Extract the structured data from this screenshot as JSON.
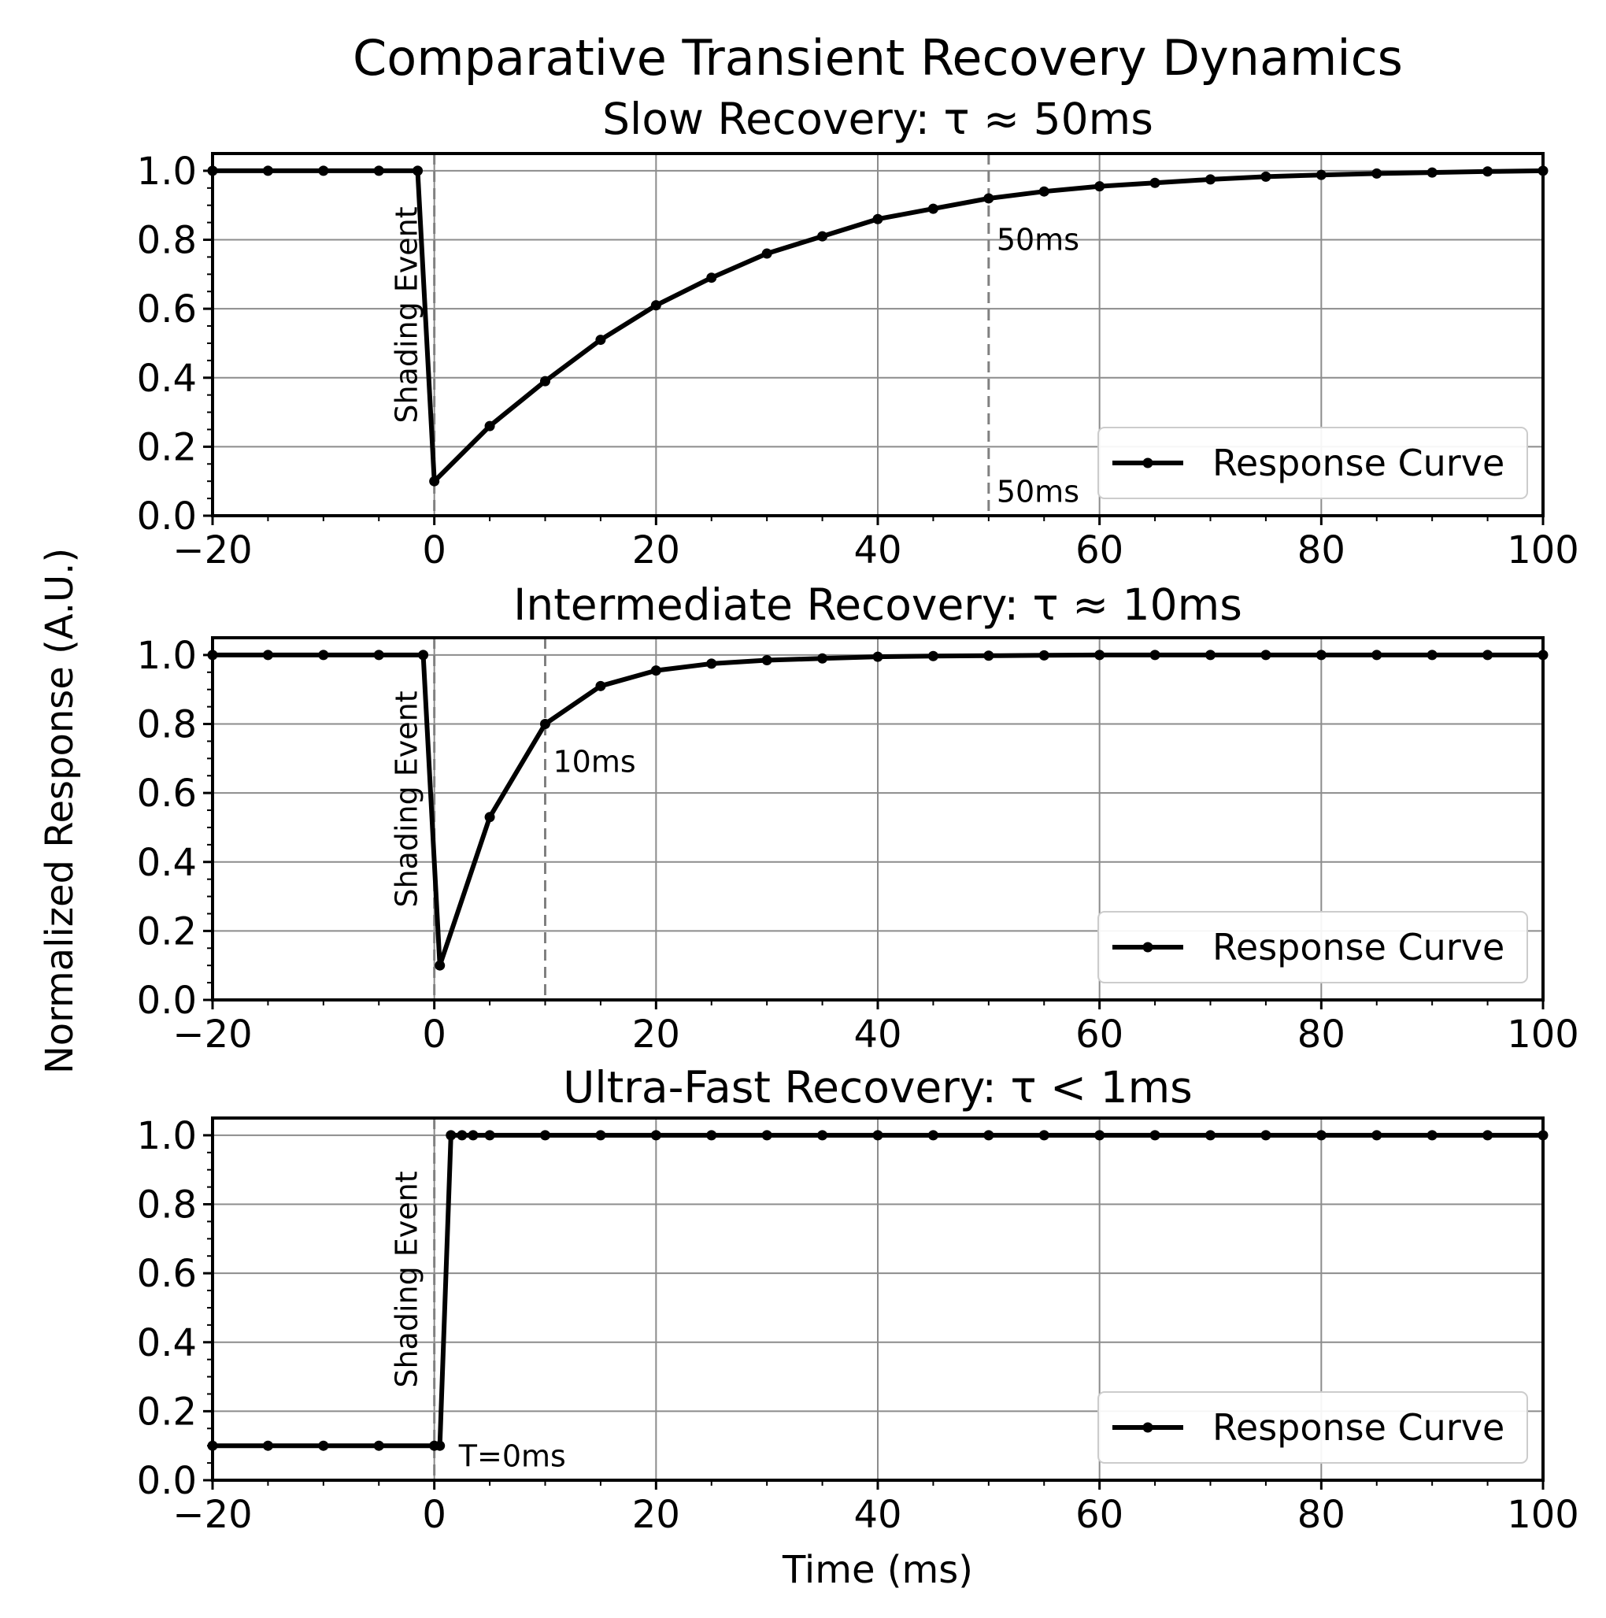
{
  "chart_data": {
    "type": "line",
    "title": "Comparative Transient Recovery Dynamics",
    "xlabel": "Time (ms)",
    "ylabel": "Normalized Response (A.U.)",
    "xlim": [
      -20,
      100
    ],
    "ylim": [
      0.0,
      1.05
    ],
    "xticks": [
      -20,
      0,
      20,
      40,
      60,
      80,
      100
    ],
    "xtick_labels": [
      "−20",
      "0",
      "20",
      "40",
      "60",
      "80",
      "100"
    ],
    "yticks": [
      0.0,
      0.2,
      0.4,
      0.6,
      0.8,
      1.0
    ],
    "ytick_labels": [
      "0.0",
      "0.2",
      "0.4",
      "0.6",
      "0.8",
      "1.0"
    ],
    "grid": true,
    "legend_position": "lower-right",
    "line_color": "#000000",
    "marker_color": "#000000",
    "grid_color": "#8c8c8c",
    "vline_color": "#808080",
    "panels": [
      {
        "title": "Slow Recovery: τ ≈ 50ms",
        "series": [
          {
            "name": "Response Curve",
            "x": [
              -20,
              -15,
              -10,
              -5,
              -1.5,
              0,
              5,
              10,
              15,
              20,
              25,
              30,
              35,
              40,
              45,
              50,
              55,
              60,
              65,
              70,
              75,
              80,
              85,
              90,
              95,
              100
            ],
            "y": [
              1.0,
              1.0,
              1.0,
              1.0,
              1.0,
              0.1,
              0.26,
              0.39,
              0.51,
              0.61,
              0.69,
              0.76,
              0.81,
              0.86,
              0.89,
              0.92,
              0.94,
              0.955,
              0.965,
              0.975,
              0.983,
              0.988,
              0.992,
              0.995,
              0.998,
              1.0
            ]
          }
        ],
        "vlines": [
          0,
          50
        ],
        "vline_label": "Shading Event",
        "annotations": [
          {
            "text": "50ms",
            "x": 50,
            "y": 0.8
          },
          {
            "text": "50ms",
            "x": 50,
            "y": 0.07
          }
        ]
      },
      {
        "title": "Intermediate Recovery: τ ≈ 10ms",
        "series": [
          {
            "name": "Response Curve",
            "x": [
              -20,
              -15,
              -10,
              -5,
              -1,
              0.5,
              5,
              10,
              15,
              20,
              25,
              30,
              35,
              40,
              45,
              50,
              55,
              60,
              65,
              70,
              75,
              80,
              85,
              90,
              95,
              100
            ],
            "y": [
              1.0,
              1.0,
              1.0,
              1.0,
              1.0,
              0.1,
              0.53,
              0.8,
              0.91,
              0.955,
              0.975,
              0.985,
              0.99,
              0.995,
              0.997,
              0.998,
              0.999,
              1.0,
              1.0,
              1.0,
              1.0,
              1.0,
              1.0,
              1.0,
              1.0,
              1.0
            ]
          }
        ],
        "vlines": [
          0,
          10
        ],
        "vline_label": "Shading Event",
        "annotations": [
          {
            "text": "10ms",
            "x": 10,
            "y": 0.69
          }
        ]
      },
      {
        "title": "Ultra-Fast Recovery: τ < 1ms",
        "series": [
          {
            "name": "Response Curve",
            "x": [
              -20,
              -15,
              -10,
              -5,
              0,
              0.5,
              1.5,
              2.5,
              3.5,
              5,
              10,
              15,
              20,
              25,
              30,
              35,
              40,
              45,
              50,
              55,
              60,
              65,
              70,
              75,
              80,
              85,
              90,
              95,
              100
            ],
            "y": [
              0.1,
              0.1,
              0.1,
              0.1,
              0.1,
              0.1,
              1.0,
              1.0,
              1.0,
              1.0,
              1.0,
              1.0,
              1.0,
              1.0,
              1.0,
              1.0,
              1.0,
              1.0,
              1.0,
              1.0,
              1.0,
              1.0,
              1.0,
              1.0,
              1.0,
              1.0,
              1.0,
              1.0,
              1.0
            ]
          }
        ],
        "vlines": [
          0
        ],
        "vline_label": "Shading Event",
        "annotations": [
          {
            "text": "T=0ms",
            "x": 1.5,
            "y": 0.07
          }
        ]
      }
    ]
  }
}
